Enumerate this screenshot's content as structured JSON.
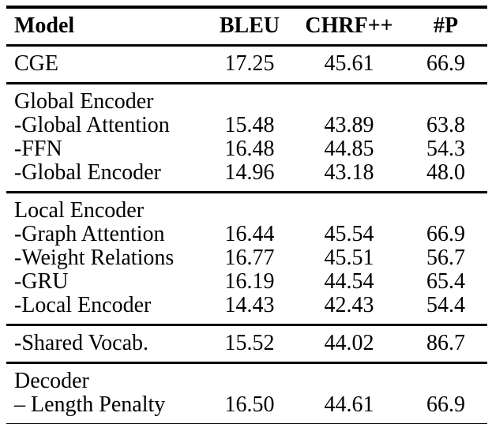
{
  "table": {
    "columns": [
      "Model",
      "BLEU",
      "CHRF++",
      "#P"
    ],
    "sections": [
      {
        "header": null,
        "rows": [
          [
            "CGE",
            "17.25",
            "45.61",
            "66.9"
          ]
        ]
      },
      {
        "header": "Global Encoder",
        "rows": [
          [
            "-Global Attention",
            "15.48",
            "43.89",
            "63.8"
          ],
          [
            "-FFN",
            "16.48",
            "44.85",
            "54.3"
          ],
          [
            "-Global Encoder",
            "14.96",
            "43.18",
            "48.0"
          ]
        ]
      },
      {
        "header": "Local Encoder",
        "rows": [
          [
            "-Graph Attention",
            "16.44",
            "45.54",
            "66.9"
          ],
          [
            "-Weight Relations",
            "16.77",
            "45.51",
            "56.7"
          ],
          [
            "-GRU",
            "16.19",
            "44.54",
            "65.4"
          ],
          [
            "-Local Encoder",
            "14.43",
            "42.43",
            "54.4"
          ]
        ]
      },
      {
        "header": null,
        "rows": [
          [
            "-Shared Vocab.",
            "15.52",
            "44.02",
            "86.7"
          ]
        ]
      },
      {
        "header": "Decoder",
        "rows": [
          [
            "– Length Penalty",
            "16.50",
            "44.61",
            "66.9"
          ]
        ]
      }
    ]
  },
  "colors": {
    "text": "#000000",
    "rule": "#000000",
    "background": "#ffffff"
  }
}
